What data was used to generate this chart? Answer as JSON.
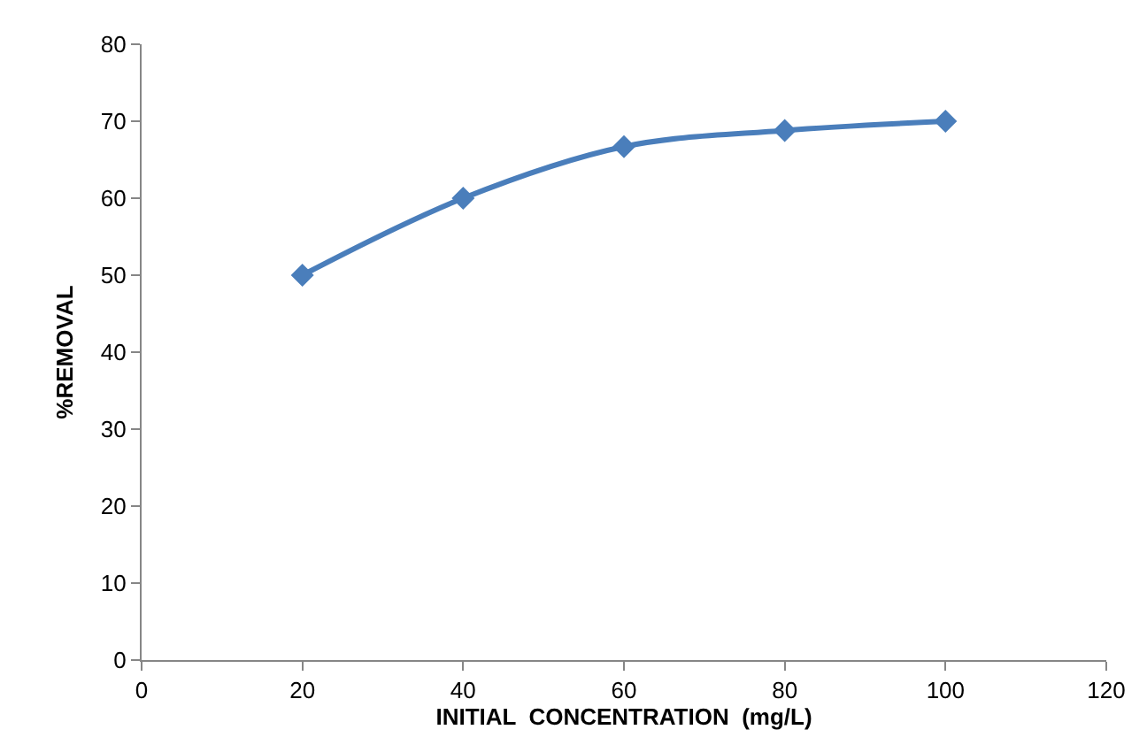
{
  "chart_data": {
    "type": "line",
    "xlabel": "INITIAL  CONCENTRATION  (mg/L)",
    "ylabel": "%REMOVAL",
    "x": [
      20,
      40,
      60,
      80,
      100
    ],
    "series": [
      {
        "color": "#4a7ebb",
        "values": [
          50,
          60,
          66.7,
          68.8,
          70
        ]
      }
    ],
    "xlim": [
      0,
      120
    ],
    "xticks": [
      0,
      20,
      40,
      60,
      80,
      100,
      120
    ],
    "ylim": [
      0,
      80
    ],
    "yticks": [
      0,
      10,
      20,
      30,
      40,
      50,
      60,
      70,
      80
    ],
    "legend": false,
    "marker": "diamond",
    "line_style": "solid"
  }
}
